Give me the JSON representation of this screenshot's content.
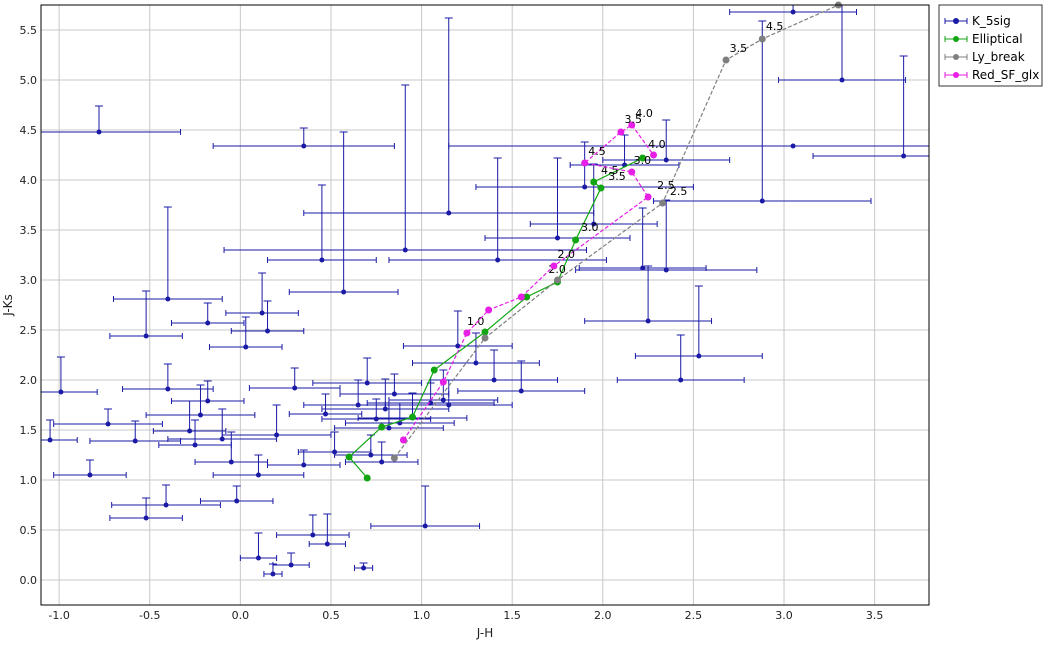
{
  "chart_data": {
    "type": "scatter",
    "xlabel": "J-H",
    "ylabel": "J-Ks",
    "xlim": [
      -1.1,
      3.8
    ],
    "ylim": [
      -0.25,
      5.75
    ],
    "xticks": [
      "-1.0",
      "-0.5",
      "0.0",
      "0.5",
      "1.0",
      "1.5",
      "2.0",
      "2.5",
      "3.0",
      "3.5"
    ],
    "yticks": [
      "0.0",
      "0.5",
      "1.0",
      "1.5",
      "2.0",
      "2.5",
      "3.0",
      "3.5",
      "4.0",
      "4.5",
      "5.0",
      "5.5"
    ],
    "xtick_values": [
      -1.0,
      -0.5,
      0.0,
      0.5,
      1.0,
      1.5,
      2.0,
      2.5,
      3.0,
      3.5
    ],
    "ytick_values": [
      0.0,
      0.5,
      1.0,
      1.5,
      2.0,
      2.5,
      3.0,
      3.5,
      4.0,
      4.5,
      5.0,
      5.5
    ],
    "grid": true,
    "legend_position": "top-right",
    "series": [
      {
        "name": "K_5sig",
        "color": "#1a1aa6",
        "style": "points-with-errorbars",
        "points": [
          [
            -0.78,
            4.48,
            0.45,
            0.26
          ],
          [
            0.35,
            4.34,
            0.5,
            0.18
          ],
          [
            -1.05,
            1.4,
            0.15,
            0.2
          ],
          [
            -0.99,
            1.88,
            0.2,
            0.35
          ],
          [
            -0.83,
            1.05,
            0.2,
            0.15
          ],
          [
            -0.73,
            1.56,
            0.3,
            0.15
          ],
          [
            -0.58,
            1.39,
            0.25,
            0.2
          ],
          [
            -0.52,
            2.44,
            0.2,
            0.45
          ],
          [
            -0.52,
            0.62,
            0.2,
            0.2
          ],
          [
            -0.4,
            2.81,
            0.3,
            0.92
          ],
          [
            -0.41,
            0.75,
            0.3,
            0.2
          ],
          [
            -0.4,
            1.91,
            0.25,
            0.25
          ],
          [
            -0.28,
            1.49,
            0.2,
            0.3
          ],
          [
            -0.25,
            1.35,
            0.2,
            0.25
          ],
          [
            -0.22,
            1.65,
            0.3,
            0.3
          ],
          [
            -0.18,
            2.57,
            0.2,
            0.2
          ],
          [
            -0.18,
            1.79,
            0.2,
            0.2
          ],
          [
            -0.1,
            1.41,
            0.3,
            0.3
          ],
          [
            -0.05,
            1.18,
            0.2,
            0.3
          ],
          [
            -0.02,
            0.79,
            0.2,
            0.15
          ],
          [
            0.03,
            2.33,
            0.2,
            0.3
          ],
          [
            0.1,
            0.22,
            0.1,
            0.25
          ],
          [
            0.1,
            1.05,
            0.25,
            0.2
          ],
          [
            0.12,
            2.67,
            0.2,
            0.4
          ],
          [
            0.15,
            2.49,
            0.2,
            0.3
          ],
          [
            0.18,
            0.06,
            0.05,
            0.1
          ],
          [
            0.2,
            1.45,
            0.3,
            0.3
          ],
          [
            0.28,
            0.15,
            0.1,
            0.12
          ],
          [
            0.3,
            1.92,
            0.25,
            0.2
          ],
          [
            0.35,
            1.15,
            0.2,
            0.15
          ],
          [
            0.4,
            0.45,
            0.2,
            0.2
          ],
          [
            0.45,
            3.2,
            0.3,
            0.75
          ],
          [
            0.47,
            1.66,
            0.2,
            0.2
          ],
          [
            0.48,
            0.36,
            0.1,
            0.3
          ],
          [
            0.52,
            1.28,
            0.2,
            0.2
          ],
          [
            0.57,
            2.88,
            0.3,
            1.6
          ],
          [
            0.65,
            1.75,
            0.3,
            0.25
          ],
          [
            0.7,
            1.97,
            0.3,
            0.25
          ],
          [
            0.72,
            1.25,
            0.2,
            0.2
          ],
          [
            0.68,
            0.12,
            0.05,
            0.05
          ],
          [
            0.75,
            1.61,
            0.3,
            0.2
          ],
          [
            0.78,
            1.18,
            0.2,
            0.2
          ],
          [
            0.8,
            1.71,
            0.35,
            0.3
          ],
          [
            0.82,
            1.52,
            0.3,
            0.25
          ],
          [
            0.85,
            1.86,
            0.3,
            0.2
          ],
          [
            0.88,
            1.57,
            0.3,
            0.2
          ],
          [
            0.91,
            3.3,
            1.0,
            1.65
          ],
          [
            0.95,
            1.62,
            0.3,
            0.25
          ],
          [
            1.02,
            0.54,
            0.3,
            0.4
          ],
          [
            1.05,
            1.77,
            0.35,
            0.2
          ],
          [
            1.12,
            1.8,
            0.3,
            0.3
          ],
          [
            1.15,
            1.75,
            0.35,
            0.25
          ],
          [
            1.15,
            3.67,
            0.8,
            1.95
          ],
          [
            1.2,
            2.34,
            0.3,
            0.35
          ],
          [
            1.3,
            2.17,
            0.35,
            0.3
          ],
          [
            1.4,
            2.0,
            0.35,
            0.3
          ],
          [
            1.42,
            3.2,
            0.6,
            1.02
          ],
          [
            1.55,
            1.89,
            0.35,
            0.3
          ],
          [
            1.75,
            3.42,
            0.4,
            0.8
          ],
          [
            1.9,
            3.93,
            0.6,
            0.45
          ],
          [
            1.95,
            3.56,
            0.35,
            0.6
          ],
          [
            2.12,
            4.15,
            0.3,
            0.3
          ],
          [
            2.25,
            2.59,
            0.35,
            0.55
          ],
          [
            2.22,
            3.12,
            0.35,
            0.6
          ],
          [
            2.35,
            3.1,
            0.5,
            0.7
          ],
          [
            2.35,
            4.2,
            0.35,
            0.4
          ],
          [
            2.43,
            2.0,
            0.35,
            0.45
          ],
          [
            2.53,
            2.24,
            0.35,
            0.7
          ],
          [
            2.88,
            3.79,
            0.6,
            1.8
          ],
          [
            3.05,
            5.68,
            0.35,
            0.3
          ],
          [
            3.32,
            5.0,
            0.35,
            0.8
          ],
          [
            3.66,
            4.24,
            0.5,
            1.0
          ],
          [
            3.05,
            4.34,
            1.9,
            0.0
          ]
        ]
      },
      {
        "name": "Elliptical",
        "color": "#11a611",
        "style": "line-with-points",
        "points": [
          [
            0.7,
            1.02
          ],
          [
            0.6,
            1.23
          ],
          [
            0.78,
            1.53
          ],
          [
            0.95,
            1.63
          ],
          [
            1.07,
            2.1
          ],
          [
            1.35,
            2.48
          ],
          [
            1.58,
            2.83
          ],
          [
            1.75,
            2.98
          ],
          [
            1.85,
            3.4
          ],
          [
            1.99,
            3.92
          ],
          [
            1.95,
            3.98
          ],
          [
            2.22,
            4.22
          ]
        ],
        "labels": [
          {
            "text": "1.0",
            "x": 1.25,
            "y": 2.55
          },
          {
            "text": "2.0",
            "x": 1.7,
            "y": 3.07
          },
          {
            "text": "3.0",
            "x": 1.88,
            "y": 3.49
          },
          {
            "text": "3.5",
            "x": 2.03,
            "y": 4.0
          },
          {
            "text": "4.5",
            "x": 1.99,
            "y": 4.06
          },
          {
            "text": "4.0",
            "x": 2.25,
            "y": 4.32
          }
        ]
      },
      {
        "name": "Ly_break",
        "color": "#7f7f7f",
        "style": "line-with-points",
        "points": [
          [
            0.85,
            1.22
          ],
          [
            1.35,
            2.42
          ],
          [
            1.75,
            3.0
          ],
          [
            2.33,
            3.77
          ],
          [
            2.68,
            5.2
          ],
          [
            2.88,
            5.41
          ],
          [
            3.3,
            5.75
          ]
        ],
        "labels": [
          {
            "text": "2.5",
            "x": 2.37,
            "y": 3.85
          },
          {
            "text": "3.5",
            "x": 2.7,
            "y": 5.28
          },
          {
            "text": "4.5",
            "x": 2.9,
            "y": 5.5
          }
        ]
      },
      {
        "name": "Red_SF_glx",
        "color": "#e61ee6",
        "style": "line-with-points",
        "points": [
          [
            0.9,
            1.4
          ],
          [
            1.12,
            1.98
          ],
          [
            1.25,
            2.47
          ],
          [
            1.37,
            2.7
          ],
          [
            1.55,
            2.83
          ],
          [
            1.73,
            3.14
          ],
          [
            2.25,
            3.83
          ],
          [
            2.16,
            4.08
          ],
          [
            1.9,
            4.17
          ],
          [
            2.1,
            4.48
          ],
          [
            2.16,
            4.55
          ],
          [
            2.28,
            4.25
          ]
        ],
        "labels": [
          {
            "text": "2.0",
            "x": 1.75,
            "y": 3.22
          },
          {
            "text": "2.5",
            "x": 2.3,
            "y": 3.91
          },
          {
            "text": "3.0",
            "x": 2.17,
            "y": 4.16
          },
          {
            "text": "4.5",
            "x": 1.92,
            "y": 4.25
          },
          {
            "text": "3.5",
            "x": 2.12,
            "y": 4.57
          },
          {
            "text": "4.0",
            "x": 2.18,
            "y": 4.63
          }
        ]
      }
    ]
  }
}
